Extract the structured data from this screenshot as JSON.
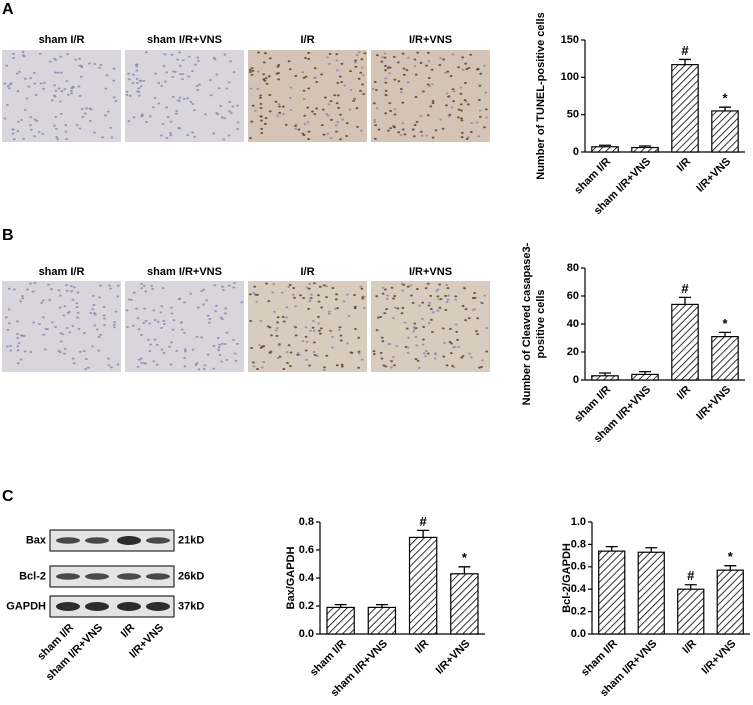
{
  "panels": {
    "a": "A",
    "b": "B",
    "c": "C"
  },
  "micrographs": {
    "labels": [
      "sham I/R",
      "sham I/R+VNS",
      "I/R",
      "I/R+VNS"
    ]
  },
  "blot": {
    "rows": [
      {
        "protein": "Bax",
        "size": "21kD"
      },
      {
        "protein": "Bcl-2",
        "size": "26kD"
      },
      {
        "protein": "GAPDH",
        "size": "37kD"
      }
    ],
    "lanes": [
      "sham I/R",
      "sham I/R+VNS",
      "I/R",
      "I/R+VNS"
    ]
  },
  "chart_data": [
    {
      "type": "bar",
      "ylabel": "Number of TUNEL-positive cells",
      "categories": [
        "sham I/R",
        "sham I/R+VNS",
        "I/R",
        "I/R+VNS"
      ],
      "values": [
        7,
        6,
        117,
        55
      ],
      "errors": [
        2,
        2,
        7,
        5
      ],
      "annotations": [
        null,
        null,
        "#",
        "*"
      ],
      "color": "#000000",
      "hatch": true,
      "ylim": [
        0,
        150
      ],
      "yticks": [
        0,
        50,
        100,
        150
      ]
    },
    {
      "type": "bar",
      "ylabel_lines": [
        "Number of Cleaved casapase3-",
        "positive cells"
      ],
      "categories": [
        "sham I/R",
        "sham I/R+VNS",
        "I/R",
        "I/R+VNS"
      ],
      "values": [
        3,
        4,
        54,
        31
      ],
      "errors": [
        2,
        2,
        5,
        3
      ],
      "annotations": [
        null,
        null,
        "#",
        "*"
      ],
      "color": "#000000",
      "hatch": true,
      "ylim": [
        0,
        80
      ],
      "yticks": [
        0,
        20,
        40,
        60,
        80
      ]
    },
    {
      "type": "bar",
      "ylabel": "Bax/GAPDH",
      "categories": [
        "sham I/R",
        "sham I/R+VNS",
        "I/R",
        "I/R+VNS"
      ],
      "values": [
        0.19,
        0.19,
        0.69,
        0.43
      ],
      "errors": [
        0.02,
        0.02,
        0.05,
        0.05
      ],
      "annotations": [
        null,
        null,
        "#",
        "*"
      ],
      "color": "#000000",
      "hatch": true,
      "ylim": [
        0,
        0.8
      ],
      "yticks": [
        {
          "value": 0,
          "label": "0.0"
        },
        0.2,
        0.4,
        0.6,
        0.8
      ]
    },
    {
      "type": "bar",
      "ylabel": "Bcl-2/GAPDH",
      "categories": [
        "sham I/R",
        "sham I/R+VNS",
        "I/R",
        "I/R+VNS"
      ],
      "values": [
        0.74,
        0.73,
        0.4,
        0.57
      ],
      "errors": [
        0.04,
        0.04,
        0.04,
        0.04
      ],
      "annotations": [
        null,
        null,
        "#",
        "*"
      ],
      "color": "#000000",
      "hatch": true,
      "ylim": [
        0,
        1
      ],
      "yticks": [
        {
          "value": 0,
          "label": "0.0"
        },
        0.2,
        0.4,
        0.6,
        0.8,
        {
          "value": 1,
          "label": "1.0"
        }
      ]
    }
  ]
}
